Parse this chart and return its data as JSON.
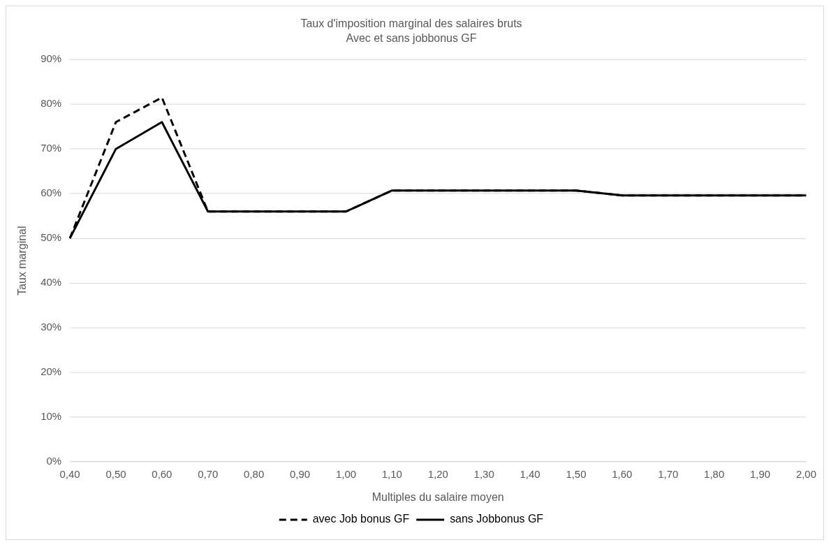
{
  "chart_data": {
    "type": "line",
    "title": "Taux d'imposition marginal des salaires bruts",
    "subtitle": "Avec et sans jobbonus GF",
    "xlabel": "Multiples du salaire moyen",
    "ylabel": "Taux marginal",
    "categories": [
      "0,40",
      "0,50",
      "0,60",
      "0,70",
      "0,80",
      "0,90",
      "1,00",
      "1,10",
      "1,20",
      "1,30",
      "1,40",
      "1,50",
      "1,60",
      "1,70",
      "1,80",
      "1,90",
      "2,00"
    ],
    "series": [
      {
        "name": "avec Job bonus GF",
        "color": "#000000",
        "line_style": "dashed",
        "values": [
          50,
          76,
          81.5,
          56,
          56,
          56,
          56,
          60.7,
          60.7,
          60.7,
          60.7,
          60.7,
          59.6,
          59.6,
          59.6,
          59.6,
          59.6
        ]
      },
      {
        "name": "sans Jobbonus GF",
        "color": "#000000",
        "line_style": "solid",
        "values": [
          50,
          70,
          76,
          56,
          56,
          56,
          56,
          60.7,
          60.7,
          60.7,
          60.7,
          60.7,
          59.6,
          59.6,
          59.6,
          59.6,
          59.6
        ]
      }
    ],
    "ylim": [
      0,
      90
    ],
    "yticks": [
      {
        "value": 0,
        "label": "0%"
      },
      {
        "value": 10,
        "label": "10%"
      },
      {
        "value": 20,
        "label": "20%"
      },
      {
        "value": 30,
        "label": "30%"
      },
      {
        "value": 40,
        "label": "40%"
      },
      {
        "value": 50,
        "label": "50%"
      },
      {
        "value": 60,
        "label": "60%"
      },
      {
        "value": 70,
        "label": "70%"
      },
      {
        "value": 80,
        "label": "80%"
      },
      {
        "value": 90,
        "label": "90%"
      }
    ],
    "grid": "y",
    "legend": "bottom",
    "marker": "none"
  }
}
